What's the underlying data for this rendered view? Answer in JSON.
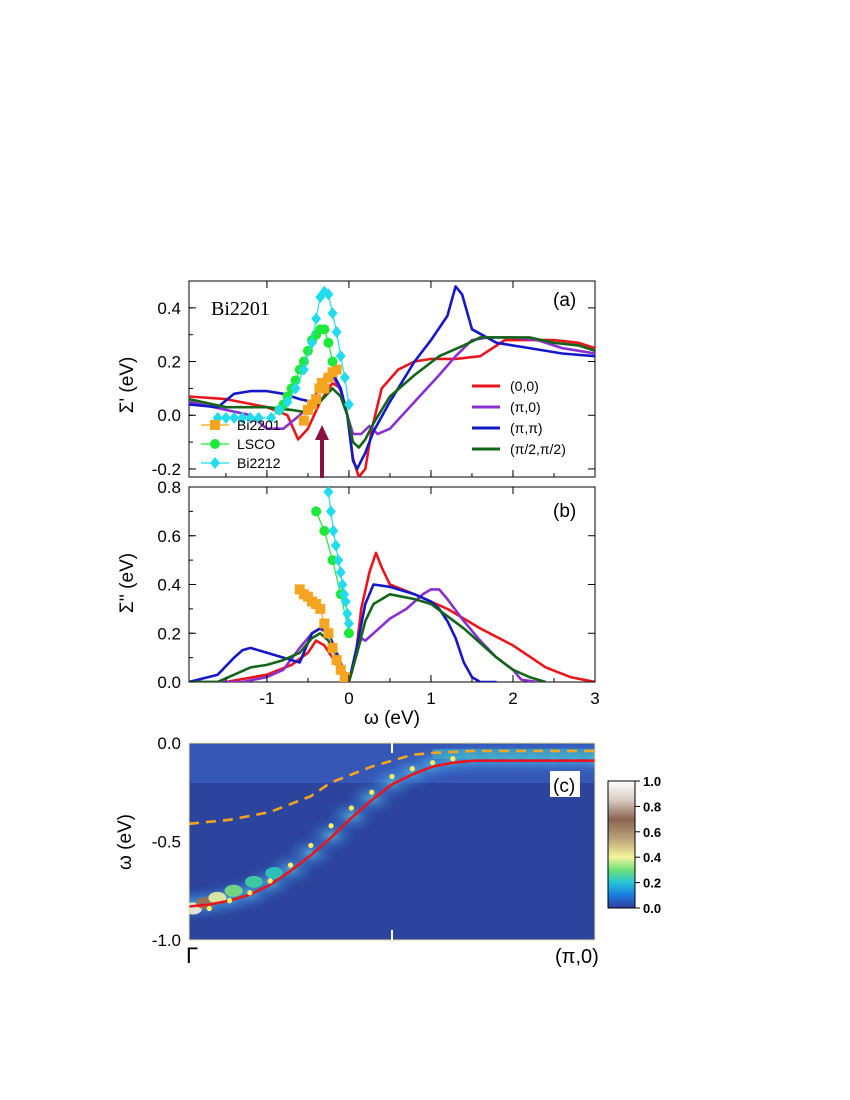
{
  "chart_data": [
    {
      "panel": "(a)",
      "type": "line",
      "label": "Bi2201",
      "ylabel": "Σ' (eV)",
      "xlim": [
        -1.95,
        3
      ],
      "ylim": [
        -0.23,
        0.5
      ],
      "yticks": [
        "-0.2",
        "0.0",
        "0.2",
        "0.4"
      ],
      "series": [
        {
          "name": "(0,0)",
          "color": "#e8161c",
          "x": [
            -1.95,
            -1.5,
            -1.0,
            -0.75,
            -0.62,
            -0.5,
            -0.35,
            -0.2,
            -0.1,
            -0.02,
            0.05,
            0.12,
            0.2,
            0.28,
            0.4,
            0.6,
            0.8,
            1.0,
            1.3,
            1.6,
            1.9,
            2.2,
            2.5,
            2.8,
            3.0
          ],
          "y": [
            0.07,
            0.06,
            0.03,
            0.0,
            -0.09,
            -0.05,
            0.05,
            0.12,
            0.1,
            0.0,
            -0.16,
            -0.23,
            -0.2,
            -0.05,
            0.1,
            0.17,
            0.2,
            0.21,
            0.21,
            0.22,
            0.28,
            0.28,
            0.28,
            0.27,
            0.25
          ]
        },
        {
          "name": "(π,0)",
          "color": "#8a2fd0",
          "x": [
            -1.95,
            -1.5,
            -1.2,
            -1.0,
            -0.8,
            -0.6,
            -0.45,
            -0.3,
            -0.2,
            -0.1,
            -0.02,
            0.05,
            0.15,
            0.25,
            0.35,
            0.5,
            0.8,
            1.1,
            1.3,
            1.5,
            1.7,
            2.0,
            2.3,
            2.6,
            3.0
          ],
          "y": [
            0.05,
            0.02,
            0.0,
            -0.05,
            -0.05,
            0.0,
            0.05,
            0.14,
            0.15,
            0.09,
            0.0,
            -0.07,
            -0.07,
            -0.04,
            -0.07,
            -0.05,
            0.05,
            0.15,
            0.22,
            0.28,
            0.29,
            0.29,
            0.28,
            0.25,
            0.23
          ]
        },
        {
          "name": "(π,π)",
          "color": "#1418c8",
          "x": [
            -1.95,
            -1.6,
            -1.4,
            -1.2,
            -1.0,
            -0.8,
            -0.6,
            -0.45,
            -0.3,
            -0.2,
            -0.1,
            -0.02,
            0.05,
            0.1,
            0.2,
            0.3,
            0.5,
            0.8,
            1.0,
            1.2,
            1.3,
            1.38,
            1.5,
            1.8,
            2.2,
            2.6,
            3.0
          ],
          "y": [
            0.04,
            0.03,
            0.08,
            0.09,
            0.09,
            0.08,
            0.06,
            0.05,
            0.13,
            0.16,
            0.1,
            0.0,
            -0.17,
            -0.2,
            -0.14,
            -0.06,
            0.05,
            0.2,
            0.28,
            0.37,
            0.48,
            0.45,
            0.32,
            0.27,
            0.25,
            0.23,
            0.22
          ]
        },
        {
          "name": "(π/2,π/2)",
          "color": "#136618",
          "x": [
            -1.95,
            -1.5,
            -1.0,
            -0.7,
            -0.5,
            -0.35,
            -0.2,
            -0.1,
            -0.02,
            0.05,
            0.12,
            0.2,
            0.3,
            0.5,
            0.8,
            1.1,
            1.4,
            1.6,
            1.9,
            2.2,
            2.5,
            2.8,
            3.0
          ],
          "y": [
            0.06,
            0.03,
            0.03,
            0.02,
            0.01,
            0.05,
            0.1,
            0.07,
            0.0,
            -0.1,
            -0.12,
            -0.09,
            -0.03,
            0.07,
            0.15,
            0.22,
            0.26,
            0.29,
            0.29,
            0.29,
            0.27,
            0.26,
            0.24
          ]
        },
        {
          "name": "Bi2201",
          "color": "#f5a41f",
          "marker": "square",
          "x": [
            -0.55,
            -0.5,
            -0.45,
            -0.4,
            -0.36,
            -0.33,
            -0.3,
            -0.25,
            -0.2,
            -0.15
          ],
          "y": [
            -0.02,
            0.02,
            0.04,
            0.06,
            0.1,
            0.12,
            0.1,
            0.14,
            0.16,
            0.17
          ]
        },
        {
          "name": "LSCO",
          "color": "#1ee83a",
          "marker": "circle",
          "x": [
            -0.85,
            -0.8,
            -0.75,
            -0.7,
            -0.65,
            -0.6,
            -0.55,
            -0.5,
            -0.45,
            -0.4,
            -0.35,
            -0.3,
            -0.25,
            -0.2
          ],
          "y": [
            0.02,
            0.04,
            0.07,
            0.1,
            0.13,
            0.17,
            0.2,
            0.24,
            0.28,
            0.3,
            0.32,
            0.32,
            0.27,
            0.2
          ]
        },
        {
          "name": "Bi2212",
          "color": "#22dcee",
          "marker": "diamond",
          "x": [
            -1.6,
            -1.5,
            -1.4,
            -1.3,
            -1.2,
            -1.1,
            -0.95,
            -0.85,
            -0.75,
            -0.65,
            -0.55,
            -0.45,
            -0.4,
            -0.35,
            -0.3,
            -0.25,
            -0.2,
            -0.15,
            -0.1,
            -0.05,
            0.0
          ],
          "y": [
            -0.01,
            -0.01,
            -0.01,
            -0.01,
            -0.01,
            -0.01,
            -0.01,
            0.02,
            0.05,
            0.1,
            0.17,
            0.27,
            0.36,
            0.44,
            0.46,
            0.45,
            0.38,
            0.31,
            0.22,
            0.14,
            0.04
          ]
        }
      ]
    },
    {
      "panel": "(b)",
      "type": "line",
      "xlabel": "ω (eV)",
      "ylabel": "Σ'' (eV)",
      "xlim": [
        -1.95,
        3
      ],
      "ylim": [
        0,
        0.8
      ],
      "xticks": [
        "-1",
        "0",
        "1",
        "2",
        "3"
      ],
      "yticks": [
        "0.0",
        "0.2",
        "0.4",
        "0.6",
        "0.8"
      ],
      "series": [
        {
          "name": "(0,0)",
          "color": "#e8161c",
          "x": [
            -1.95,
            -1.5,
            -1.0,
            -0.7,
            -0.5,
            -0.4,
            -0.3,
            -0.2,
            -0.1,
            0.0,
            0.08,
            0.15,
            0.25,
            0.33,
            0.4,
            0.5,
            0.8,
            1.2,
            1.6,
            2.0,
            2.4,
            2.7,
            3.0
          ],
          "y": [
            0.0,
            0.0,
            0.03,
            0.07,
            0.12,
            0.17,
            0.15,
            0.1,
            0.04,
            0.0,
            0.1,
            0.3,
            0.45,
            0.53,
            0.47,
            0.4,
            0.36,
            0.3,
            0.22,
            0.15,
            0.06,
            0.02,
            0.0
          ]
        },
        {
          "name": "(π,0)",
          "color": "#8a2fd0",
          "x": [
            -1.95,
            -1.3,
            -1.0,
            -0.8,
            -0.6,
            -0.45,
            -0.35,
            -0.25,
            -0.15,
            -0.05,
            0.0,
            0.08,
            0.15,
            0.2,
            0.3,
            0.5,
            0.7,
            0.9,
            1.0,
            1.1,
            1.2,
            1.4,
            1.6,
            1.8,
            2.0,
            2.1,
            2.3
          ],
          "y": [
            0.0,
            0.0,
            0.02,
            0.05,
            0.14,
            0.2,
            0.22,
            0.2,
            0.12,
            0.04,
            0.0,
            0.1,
            0.18,
            0.17,
            0.2,
            0.26,
            0.3,
            0.36,
            0.38,
            0.38,
            0.34,
            0.25,
            0.17,
            0.1,
            0.05,
            0.01,
            0.0
          ]
        },
        {
          "name": "(π,π)",
          "color": "#1418c8",
          "x": [
            -1.95,
            -1.6,
            -1.4,
            -1.3,
            -1.2,
            -1.0,
            -0.8,
            -0.6,
            -0.45,
            -0.35,
            -0.25,
            -0.15,
            -0.05,
            0.0,
            0.1,
            0.2,
            0.3,
            0.5,
            0.8,
            1.0,
            1.1,
            1.2,
            1.3,
            1.4,
            1.5,
            1.6,
            1.8
          ],
          "y": [
            0.0,
            0.03,
            0.1,
            0.13,
            0.14,
            0.12,
            0.1,
            0.08,
            0.2,
            0.22,
            0.2,
            0.12,
            0.03,
            0.0,
            0.15,
            0.32,
            0.4,
            0.39,
            0.36,
            0.33,
            0.3,
            0.25,
            0.18,
            0.08,
            0.02,
            0.0,
            0.0
          ]
        },
        {
          "name": "(π/2,π/2)",
          "color": "#136618",
          "x": [
            -1.95,
            -1.6,
            -1.4,
            -1.2,
            -1.0,
            -0.8,
            -0.6,
            -0.45,
            -0.35,
            -0.25,
            -0.15,
            -0.05,
            0.0,
            0.1,
            0.2,
            0.3,
            0.5,
            0.8,
            1.0,
            1.2,
            1.4,
            1.6,
            1.8,
            2.0,
            2.2,
            2.4
          ],
          "y": [
            0.0,
            0.0,
            0.03,
            0.06,
            0.07,
            0.09,
            0.12,
            0.18,
            0.2,
            0.17,
            0.1,
            0.03,
            0.0,
            0.12,
            0.25,
            0.32,
            0.36,
            0.34,
            0.32,
            0.27,
            0.22,
            0.16,
            0.1,
            0.05,
            0.02,
            0.0
          ]
        },
        {
          "name": "Bi2201",
          "color": "#f5a41f",
          "marker": "square",
          "x": [
            -0.6,
            -0.55,
            -0.5,
            -0.45,
            -0.4,
            -0.35,
            -0.3,
            -0.25,
            -0.2,
            -0.15,
            -0.1,
            -0.05
          ],
          "y": [
            0.38,
            0.36,
            0.35,
            0.33,
            0.32,
            0.3,
            0.24,
            0.2,
            0.14,
            0.09,
            0.05,
            0.02
          ]
        },
        {
          "name": "LSCO",
          "color": "#1ee83a",
          "marker": "circle",
          "x": [
            -0.4,
            -0.3,
            -0.2,
            -0.1,
            0.0
          ],
          "y": [
            0.7,
            0.62,
            0.5,
            0.36,
            0.2
          ]
        },
        {
          "name": "Bi2212",
          "color": "#22dcee",
          "marker": "diamond",
          "x": [
            -0.25,
            -0.22,
            -0.19,
            -0.16,
            -0.13,
            -0.1,
            -0.08,
            -0.06,
            -0.04,
            -0.02,
            0.0
          ],
          "y": [
            0.78,
            0.7,
            0.62,
            0.56,
            0.5,
            0.45,
            0.4,
            0.36,
            0.33,
            0.28,
            0.24
          ]
        }
      ]
    },
    {
      "panel": "(c)",
      "type": "heatmap",
      "ylabel": "ω (eV)",
      "xticks": [
        "Γ",
        "(π,0)"
      ],
      "yticks": [
        "0.0",
        "-0.5",
        "-1.0"
      ],
      "ylim": [
        -1.0,
        0.0
      ],
      "colorbar_ticks": [
        "1.0",
        "0.8",
        "0.6",
        "0.4",
        "0.2",
        "0.0"
      ],
      "series": [
        {
          "name": "red-line",
          "color": "#e8161c",
          "x": [
            0,
            0.05,
            0.1,
            0.15,
            0.2,
            0.25,
            0.3,
            0.35,
            0.4,
            0.45,
            0.5,
            0.55,
            0.6,
            0.65,
            0.7,
            0.75,
            0.8,
            0.85,
            0.9,
            0.95,
            1.0
          ],
          "y": [
            -0.83,
            -0.82,
            -0.8,
            -0.77,
            -0.72,
            -0.65,
            -0.57,
            -0.48,
            -0.38,
            -0.29,
            -0.21,
            -0.16,
            -0.12,
            -0.1,
            -0.09,
            -0.09,
            -0.09,
            -0.09,
            -0.09,
            -0.09,
            -0.09
          ]
        },
        {
          "name": "orange-dashed",
          "color": "#f5a41f",
          "x": [
            0,
            0.1,
            0.2,
            0.3,
            0.35,
            0.4,
            0.45,
            0.5,
            0.55,
            0.6,
            0.7,
            0.8,
            0.9,
            1.0
          ],
          "y": [
            -0.41,
            -0.39,
            -0.35,
            -0.27,
            -0.2,
            -0.16,
            -0.12,
            -0.09,
            -0.06,
            -0.05,
            -0.04,
            -0.04,
            -0.04,
            -0.04
          ]
        },
        {
          "name": "yellow-dots",
          "color": "#f8f060",
          "x": [
            0.05,
            0.1,
            0.15,
            0.2,
            0.25,
            0.3,
            0.35,
            0.4,
            0.45,
            0.5,
            0.55,
            0.6,
            0.65
          ],
          "y": [
            -0.84,
            -0.8,
            -0.76,
            -0.7,
            -0.62,
            -0.52,
            -0.42,
            -0.33,
            -0.25,
            -0.17,
            -0.13,
            -0.1,
            -0.08
          ]
        }
      ]
    }
  ]
}
